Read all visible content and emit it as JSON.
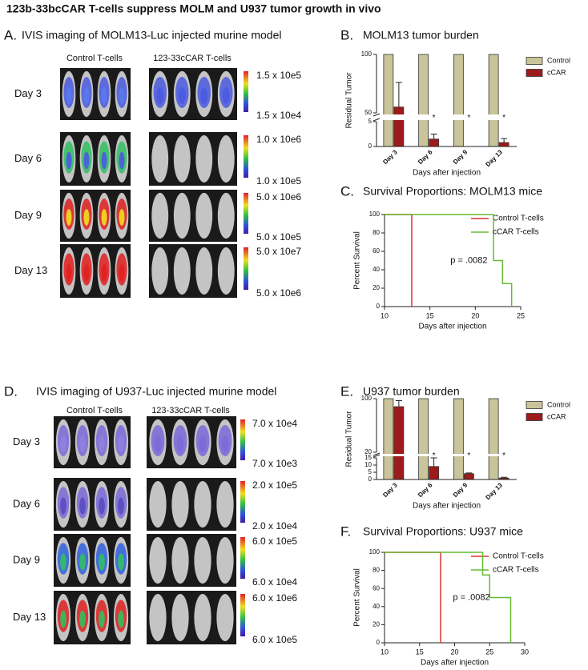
{
  "title": "123b-33bcCAR T-cells suppress MOLM and U937 tumor growth in vivo",
  "imaging": [
    {
      "panel": "A.",
      "title": "IVIS imaging of MOLM13-Luc injected murine model",
      "columns": [
        "Control T-cells",
        "123-33cCAR T-cells"
      ],
      "rows": [
        {
          "day": "Day 3",
          "scale": [
            "1.5 x 10e5",
            "1.5 x 10e4"
          ]
        },
        {
          "day": "Day 6",
          "scale": [
            "1.0 x 10e6",
            "1.0 x 10e5"
          ]
        },
        {
          "day": "Day 9",
          "scale": [
            "5.0 x 10e6",
            "5.0 x 10e5"
          ]
        },
        {
          "day": "Day 13",
          "scale": [
            "5.0 x 10e7",
            "5.0 x 10e6"
          ]
        }
      ]
    },
    {
      "panel": "D.",
      "title": "IVIS imaging of U937-Luc injected murine model",
      "columns": [
        "Control T-cells",
        "123-33cCAR T-cells"
      ],
      "rows": [
        {
          "day": "Day 3",
          "scale": [
            "7.0 x 10e4",
            "7.0 x 10e3"
          ]
        },
        {
          "day": "Day 6",
          "scale": [
            "2.0 x 10e5",
            "2.0 x 10e4"
          ]
        },
        {
          "day": "Day 9",
          "scale": [
            "6.0 x 10e5",
            "6.0 x 10e4"
          ]
        },
        {
          "day": "Day 13",
          "scale": [
            "6.0 x 10e6",
            "6.0 x 10e5"
          ]
        }
      ]
    }
  ],
  "chart_data": [
    {
      "type": "bar",
      "panel": "B.",
      "title": "MOLM13 tumor burden",
      "ylabel": "Residual Tumor",
      "xlabel": "Days after injection",
      "categories": [
        "Day 3",
        "Day 6",
        "Day 9",
        "Day 13"
      ],
      "series": [
        {
          "name": "Control",
          "color": "#c9c49a",
          "values": [
            100,
            100,
            100,
            100
          ]
        },
        {
          "name": "cCAR",
          "color": "#9e1b1b",
          "values": [
            55,
            1.5,
            0,
            0.8
          ],
          "errors": [
            21,
            1,
            0,
            0.8
          ]
        }
      ],
      "ylim": [
        0,
        100
      ],
      "ybreak": [
        5,
        50
      ],
      "yticks": [
        0,
        5,
        50,
        100
      ],
      "significance": [
        null,
        "*",
        "*",
        "*"
      ]
    },
    {
      "type": "step",
      "panel": "C.",
      "title": "Survival Proportions: MOLM13 mice",
      "ylabel": "Percent Survival",
      "xlabel": "Days after injection",
      "series": [
        {
          "name": "Control T-cells",
          "color": "#e03030",
          "x": [
            10,
            13
          ],
          "values": [
            100,
            0
          ]
        },
        {
          "name": "cCAR T-cells",
          "color": "#66bb33",
          "x": [
            10,
            22,
            23,
            24
          ],
          "values": [
            100,
            50,
            25,
            0
          ]
        }
      ],
      "xlim": [
        10,
        25
      ],
      "xticks": [
        10,
        15,
        20,
        25
      ],
      "ylim": [
        0,
        100
      ],
      "yticks": [
        0,
        20,
        40,
        60,
        80,
        100
      ],
      "annotation": "p = .0082"
    },
    {
      "type": "bar",
      "panel": "E.",
      "title": "U937 tumor burden",
      "ylabel": "Residual Tumor",
      "xlabel": "Days after injection",
      "categories": [
        "Day 3",
        "Day 6",
        "Day 9",
        "Day 13"
      ],
      "series": [
        {
          "name": "Control",
          "color": "#c9c49a",
          "values": [
            100,
            100,
            100,
            100
          ]
        },
        {
          "name": "cCAR",
          "color": "#9e1b1b",
          "values": [
            88,
            9,
            4,
            1
          ],
          "errors": [
            9,
            6,
            0.5,
            0.5
          ]
        }
      ],
      "ylim": [
        0,
        100
      ],
      "ybreak": [
        15,
        20
      ],
      "yticks": [
        0,
        5,
        10,
        15,
        20,
        100
      ],
      "significance": [
        null,
        "*",
        "*",
        "*"
      ]
    },
    {
      "type": "step",
      "panel": "F.",
      "title": "Survival Proportions: U937 mice",
      "ylabel": "Percent Survival",
      "xlabel": "Days after injection",
      "series": [
        {
          "name": "Control T-cells",
          "color": "#e03030",
          "x": [
            10,
            18
          ],
          "values": [
            100,
            0
          ]
        },
        {
          "name": "cCAR T-cells",
          "color": "#66bb33",
          "x": [
            10,
            24,
            25,
            28
          ],
          "values": [
            100,
            75,
            50,
            0
          ]
        }
      ],
      "xlim": [
        10,
        30
      ],
      "xticks": [
        10,
        15,
        20,
        25,
        30
      ],
      "ylim": [
        0,
        100
      ],
      "yticks": [
        0,
        20,
        40,
        60,
        80,
        100
      ],
      "annotation": "p = .0082"
    }
  ]
}
